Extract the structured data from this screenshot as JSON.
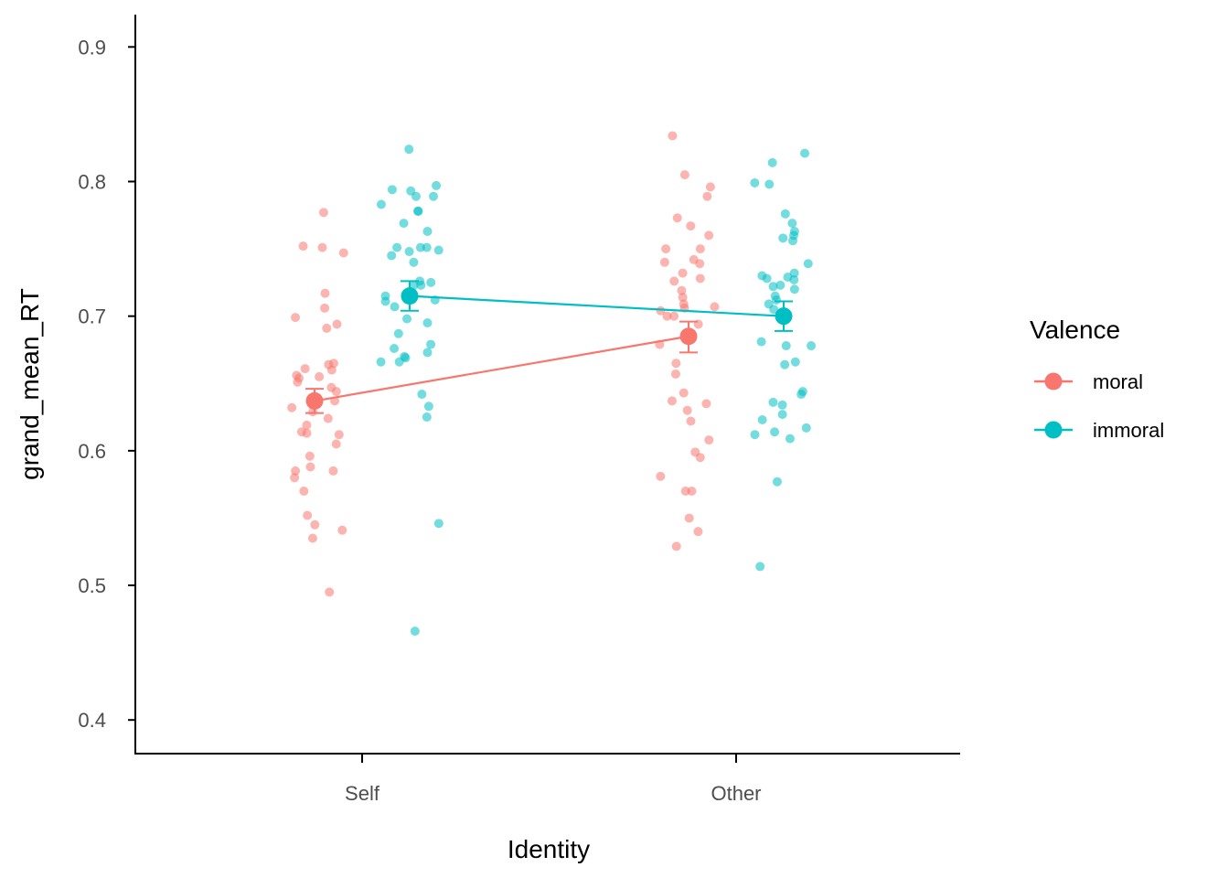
{
  "chart_data": {
    "type": "scatter",
    "xlabel": "Identity",
    "ylabel": "grand_mean_RT",
    "categories": [
      "Self",
      "Other"
    ],
    "y_ticks": [
      "0.4",
      "0.5",
      "0.6",
      "0.7",
      "0.8",
      "0.9"
    ],
    "ylim": [
      0.375,
      0.924
    ],
    "grid": false,
    "legend": {
      "title": "Valence",
      "position": "right"
    },
    "series": [
      {
        "name": "moral",
        "color": "#F8766D",
        "mean": [
          0.637,
          0.685
        ],
        "error_low": [
          0.628,
          0.673
        ],
        "error_high": [
          0.646,
          0.696
        ],
        "points": [
          {
            "x": "Self",
            "y": 0.777
          },
          {
            "x": "Self",
            "y": 0.752
          },
          {
            "x": "Self",
            "y": 0.751
          },
          {
            "x": "Self",
            "y": 0.747
          },
          {
            "x": "Self",
            "y": 0.717
          },
          {
            "x": "Self",
            "y": 0.706
          },
          {
            "x": "Self",
            "y": 0.699
          },
          {
            "x": "Self",
            "y": 0.694
          },
          {
            "x": "Self",
            "y": 0.691
          },
          {
            "x": "Self",
            "y": 0.665
          },
          {
            "x": "Self",
            "y": 0.664
          },
          {
            "x": "Self",
            "y": 0.661
          },
          {
            "x": "Self",
            "y": 0.66
          },
          {
            "x": "Self",
            "y": 0.656
          },
          {
            "x": "Self",
            "y": 0.655
          },
          {
            "x": "Self",
            "y": 0.654
          },
          {
            "x": "Self",
            "y": 0.651
          },
          {
            "x": "Self",
            "y": 0.647
          },
          {
            "x": "Self",
            "y": 0.644
          },
          {
            "x": "Self",
            "y": 0.637
          },
          {
            "x": "Self",
            "y": 0.632
          },
          {
            "x": "Self",
            "y": 0.629
          },
          {
            "x": "Self",
            "y": 0.624
          },
          {
            "x": "Self",
            "y": 0.619
          },
          {
            "x": "Self",
            "y": 0.614
          },
          {
            "x": "Self",
            "y": 0.613
          },
          {
            "x": "Self",
            "y": 0.612
          },
          {
            "x": "Self",
            "y": 0.605
          },
          {
            "x": "Self",
            "y": 0.596
          },
          {
            "x": "Self",
            "y": 0.588
          },
          {
            "x": "Self",
            "y": 0.585
          },
          {
            "x": "Self",
            "y": 0.585
          },
          {
            "x": "Self",
            "y": 0.58
          },
          {
            "x": "Self",
            "y": 0.57
          },
          {
            "x": "Self",
            "y": 0.552
          },
          {
            "x": "Self",
            "y": 0.545
          },
          {
            "x": "Self",
            "y": 0.541
          },
          {
            "x": "Self",
            "y": 0.535
          },
          {
            "x": "Self",
            "y": 0.495
          },
          {
            "x": "Other",
            "y": 0.834
          },
          {
            "x": "Other",
            "y": 0.805
          },
          {
            "x": "Other",
            "y": 0.796
          },
          {
            "x": "Other",
            "y": 0.789
          },
          {
            "x": "Other",
            "y": 0.773
          },
          {
            "x": "Other",
            "y": 0.767
          },
          {
            "x": "Other",
            "y": 0.76
          },
          {
            "x": "Other",
            "y": 0.75
          },
          {
            "x": "Other",
            "y": 0.75
          },
          {
            "x": "Other",
            "y": 0.742
          },
          {
            "x": "Other",
            "y": 0.74
          },
          {
            "x": "Other",
            "y": 0.739
          },
          {
            "x": "Other",
            "y": 0.732
          },
          {
            "x": "Other",
            "y": 0.728
          },
          {
            "x": "Other",
            "y": 0.726
          },
          {
            "x": "Other",
            "y": 0.719
          },
          {
            "x": "Other",
            "y": 0.714
          },
          {
            "x": "Other",
            "y": 0.709
          },
          {
            "x": "Other",
            "y": 0.707
          },
          {
            "x": "Other",
            "y": 0.706
          },
          {
            "x": "Other",
            "y": 0.704
          },
          {
            "x": "Other",
            "y": 0.7
          },
          {
            "x": "Other",
            "y": 0.7
          },
          {
            "x": "Other",
            "y": 0.694
          },
          {
            "x": "Other",
            "y": 0.679
          },
          {
            "x": "Other",
            "y": 0.665
          },
          {
            "x": "Other",
            "y": 0.657
          },
          {
            "x": "Other",
            "y": 0.643
          },
          {
            "x": "Other",
            "y": 0.637
          },
          {
            "x": "Other",
            "y": 0.635
          },
          {
            "x": "Other",
            "y": 0.63
          },
          {
            "x": "Other",
            "y": 0.622
          },
          {
            "x": "Other",
            "y": 0.608
          },
          {
            "x": "Other",
            "y": 0.599
          },
          {
            "x": "Other",
            "y": 0.595
          },
          {
            "x": "Other",
            "y": 0.581
          },
          {
            "x": "Other",
            "y": 0.57
          },
          {
            "x": "Other",
            "y": 0.57
          },
          {
            "x": "Other",
            "y": 0.55
          },
          {
            "x": "Other",
            "y": 0.54
          },
          {
            "x": "Other",
            "y": 0.529
          }
        ]
      },
      {
        "name": "immoral",
        "color": "#00BFC4",
        "mean": [
          0.715,
          0.7
        ],
        "error_low": [
          0.704,
          0.689
        ],
        "error_high": [
          0.726,
          0.711
        ],
        "points": [
          {
            "x": "Self",
            "y": 0.824
          },
          {
            "x": "Self",
            "y": 0.797
          },
          {
            "x": "Self",
            "y": 0.794
          },
          {
            "x": "Self",
            "y": 0.793
          },
          {
            "x": "Self",
            "y": 0.789
          },
          {
            "x": "Self",
            "y": 0.789
          },
          {
            "x": "Self",
            "y": 0.783
          },
          {
            "x": "Self",
            "y": 0.778
          },
          {
            "x": "Self",
            "y": 0.778
          },
          {
            "x": "Self",
            "y": 0.769
          },
          {
            "x": "Self",
            "y": 0.763
          },
          {
            "x": "Self",
            "y": 0.751
          },
          {
            "x": "Self",
            "y": 0.751
          },
          {
            "x": "Self",
            "y": 0.751
          },
          {
            "x": "Self",
            "y": 0.749
          },
          {
            "x": "Self",
            "y": 0.748
          },
          {
            "x": "Self",
            "y": 0.745
          },
          {
            "x": "Self",
            "y": 0.74
          },
          {
            "x": "Self",
            "y": 0.726
          },
          {
            "x": "Self",
            "y": 0.725
          },
          {
            "x": "Self",
            "y": 0.723
          },
          {
            "x": "Self",
            "y": 0.723
          },
          {
            "x": "Self",
            "y": 0.715
          },
          {
            "x": "Self",
            "y": 0.712
          },
          {
            "x": "Self",
            "y": 0.711
          },
          {
            "x": "Self",
            "y": 0.707
          },
          {
            "x": "Self",
            "y": 0.698
          },
          {
            "x": "Self",
            "y": 0.695
          },
          {
            "x": "Self",
            "y": 0.687
          },
          {
            "x": "Self",
            "y": 0.679
          },
          {
            "x": "Self",
            "y": 0.676
          },
          {
            "x": "Self",
            "y": 0.673
          },
          {
            "x": "Self",
            "y": 0.67
          },
          {
            "x": "Self",
            "y": 0.669
          },
          {
            "x": "Self",
            "y": 0.666
          },
          {
            "x": "Self",
            "y": 0.666
          },
          {
            "x": "Self",
            "y": 0.642
          },
          {
            "x": "Self",
            "y": 0.633
          },
          {
            "x": "Self",
            "y": 0.625
          },
          {
            "x": "Self",
            "y": 0.546
          },
          {
            "x": "Self",
            "y": 0.466
          },
          {
            "x": "Other",
            "y": 0.821
          },
          {
            "x": "Other",
            "y": 0.814
          },
          {
            "x": "Other",
            "y": 0.799
          },
          {
            "x": "Other",
            "y": 0.798
          },
          {
            "x": "Other",
            "y": 0.776
          },
          {
            "x": "Other",
            "y": 0.769
          },
          {
            "x": "Other",
            "y": 0.763
          },
          {
            "x": "Other",
            "y": 0.76
          },
          {
            "x": "Other",
            "y": 0.758
          },
          {
            "x": "Other",
            "y": 0.756
          },
          {
            "x": "Other",
            "y": 0.739
          },
          {
            "x": "Other",
            "y": 0.732
          },
          {
            "x": "Other",
            "y": 0.73
          },
          {
            "x": "Other",
            "y": 0.729
          },
          {
            "x": "Other",
            "y": 0.728
          },
          {
            "x": "Other",
            "y": 0.727
          },
          {
            "x": "Other",
            "y": 0.723
          },
          {
            "x": "Other",
            "y": 0.722
          },
          {
            "x": "Other",
            "y": 0.72
          },
          {
            "x": "Other",
            "y": 0.715
          },
          {
            "x": "Other",
            "y": 0.712
          },
          {
            "x": "Other",
            "y": 0.709
          },
          {
            "x": "Other",
            "y": 0.705
          },
          {
            "x": "Other",
            "y": 0.681
          },
          {
            "x": "Other",
            "y": 0.678
          },
          {
            "x": "Other",
            "y": 0.678
          },
          {
            "x": "Other",
            "y": 0.666
          },
          {
            "x": "Other",
            "y": 0.664
          },
          {
            "x": "Other",
            "y": 0.644
          },
          {
            "x": "Other",
            "y": 0.642
          },
          {
            "x": "Other",
            "y": 0.636
          },
          {
            "x": "Other",
            "y": 0.634
          },
          {
            "x": "Other",
            "y": 0.627
          },
          {
            "x": "Other",
            "y": 0.623
          },
          {
            "x": "Other",
            "y": 0.617
          },
          {
            "x": "Other",
            "y": 0.614
          },
          {
            "x": "Other",
            "y": 0.612
          },
          {
            "x": "Other",
            "y": 0.609
          },
          {
            "x": "Other",
            "y": 0.577
          },
          {
            "x": "Other",
            "y": 0.514
          }
        ]
      }
    ]
  }
}
